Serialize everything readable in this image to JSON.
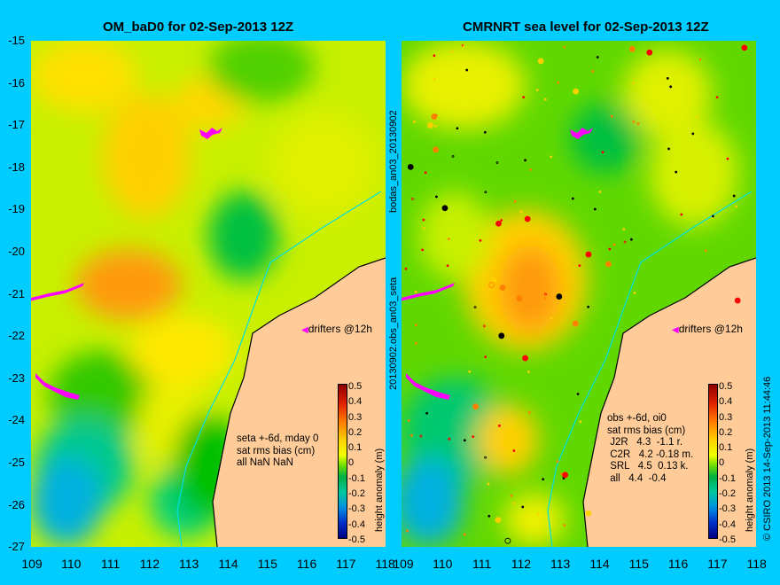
{
  "titles": {
    "left": "OM_baD0 for 02-Sep-2013 12Z",
    "right": "CMRNRT sea level  for 02-Sep-2013 12Z"
  },
  "axes": {
    "y_labels": [
      "-15",
      "-16",
      "-17",
      "-18",
      "-19",
      "-20",
      "-21",
      "-22",
      "-23",
      "-24",
      "-25",
      "-26",
      "-27"
    ],
    "x_labels_left": [
      "109",
      "110",
      "111",
      "112",
      "113",
      "114",
      "115",
      "116",
      "117",
      "118"
    ],
    "x_labels_right": [
      "109",
      "110",
      "111",
      "112",
      "113",
      "114",
      "115",
      "116",
      "117",
      "118"
    ]
  },
  "side_text": {
    "upper": "bodas_an03_20130902",
    "lower": "20130902.obs_an03_seta",
    "credit": "© CSIRO 2013   14-Sep-2013 11:44:46"
  },
  "drifters_label": "drifters @12h",
  "stats_left": "seta +-6d, mday 0\nsat rms bias (cm)\nall NaN NaN",
  "stats_right": "obs +-6d, oi0\nsat rms bias (cm)\n J2R   4.3  -1.1 r.\n C2R   4.2 -0.18 m.\n SRL   4.5  0.13 k.\n all   4.4  -0.4",
  "colorbar": {
    "ticks": [
      "0.5",
      "0.4",
      "0.3",
      "0.2",
      "0.1",
      "0",
      "-0.1",
      "-0.2",
      "-0.3",
      "-0.4",
      "-0.5"
    ],
    "label": "height anomaly (m)"
  },
  "colors": {
    "background": "#00ccff",
    "land": "#ffcc99",
    "drifter": "#ff00ff"
  }
}
